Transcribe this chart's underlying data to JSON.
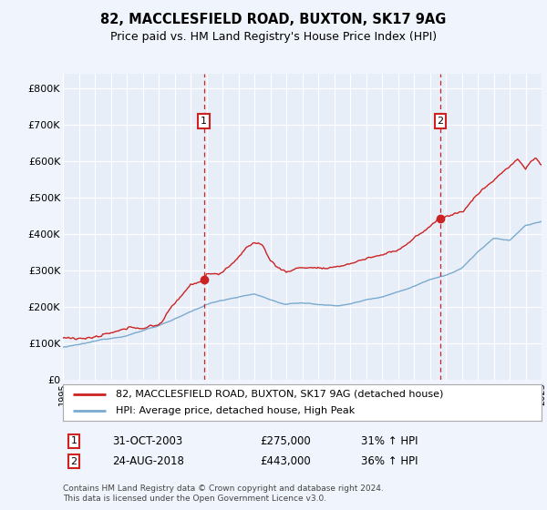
{
  "title": "82, MACCLESFIELD ROAD, BUXTON, SK17 9AG",
  "subtitle": "Price paid vs. HM Land Registry's House Price Index (HPI)",
  "ylabel_ticks": [
    "£0",
    "£100K",
    "£200K",
    "£300K",
    "£400K",
    "£500K",
    "£600K",
    "£700K",
    "£800K"
  ],
  "ytick_values": [
    0,
    100000,
    200000,
    300000,
    400000,
    500000,
    600000,
    700000,
    800000
  ],
  "ylim": [
    0,
    840000
  ],
  "xlim_start": 1995,
  "xlim_end": 2025,
  "bg_color": "#f0f4fc",
  "plot_bg": "#e8eef8",
  "grid_color": "#ffffff",
  "red_line_color": "#cc2222",
  "blue_line_color": "#7aaad0",
  "marker1_year": 2003.83,
  "marker1_value": 275000,
  "marker2_year": 2018.65,
  "marker2_value": 443000,
  "legend_red": "82, MACCLESFIELD ROAD, BUXTON, SK17 9AG (detached house)",
  "legend_blue": "HPI: Average price, detached house, High Peak",
  "annotation1_date": "31-OCT-2003",
  "annotation1_price": "£275,000",
  "annotation1_hpi": "31% ↑ HPI",
  "annotation2_date": "24-AUG-2018",
  "annotation2_price": "£443,000",
  "annotation2_hpi": "36% ↑ HPI",
  "footer": "Contains HM Land Registry data © Crown copyright and database right 2024.\nThis data is licensed under the Open Government Licence v3.0."
}
